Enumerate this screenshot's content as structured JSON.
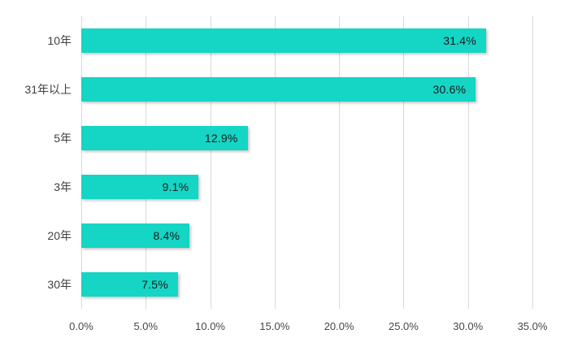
{
  "chart_data": {
    "type": "bar",
    "orientation": "horizontal",
    "title": "",
    "xlabel": "",
    "ylabel": "",
    "categories": [
      "10年",
      "31年以上",
      "5年",
      "3年",
      "20年",
      "30年"
    ],
    "values": [
      31.4,
      30.6,
      12.9,
      9.1,
      8.4,
      7.5
    ],
    "value_labels": [
      "31.4%",
      "30.6%",
      "12.9%",
      "9.1%",
      "8.4%",
      "7.5%"
    ],
    "x_ticks": [
      "0.0%",
      "5.0%",
      "10.0%",
      "15.0%",
      "20.0%",
      "25.0%",
      "30.0%",
      "35.0%"
    ],
    "x_tick_values": [
      0,
      5,
      10,
      15,
      20,
      25,
      30,
      35
    ],
    "xlim": [
      0,
      35
    ],
    "grid": true,
    "legend": false,
    "colors": {
      "bar": "#15d5c4",
      "gridline": "#d9d9d9",
      "category_label": "#404040",
      "value_label": "#1a1a1a",
      "tick_label": "#474747",
      "background": "#ffffff"
    }
  }
}
